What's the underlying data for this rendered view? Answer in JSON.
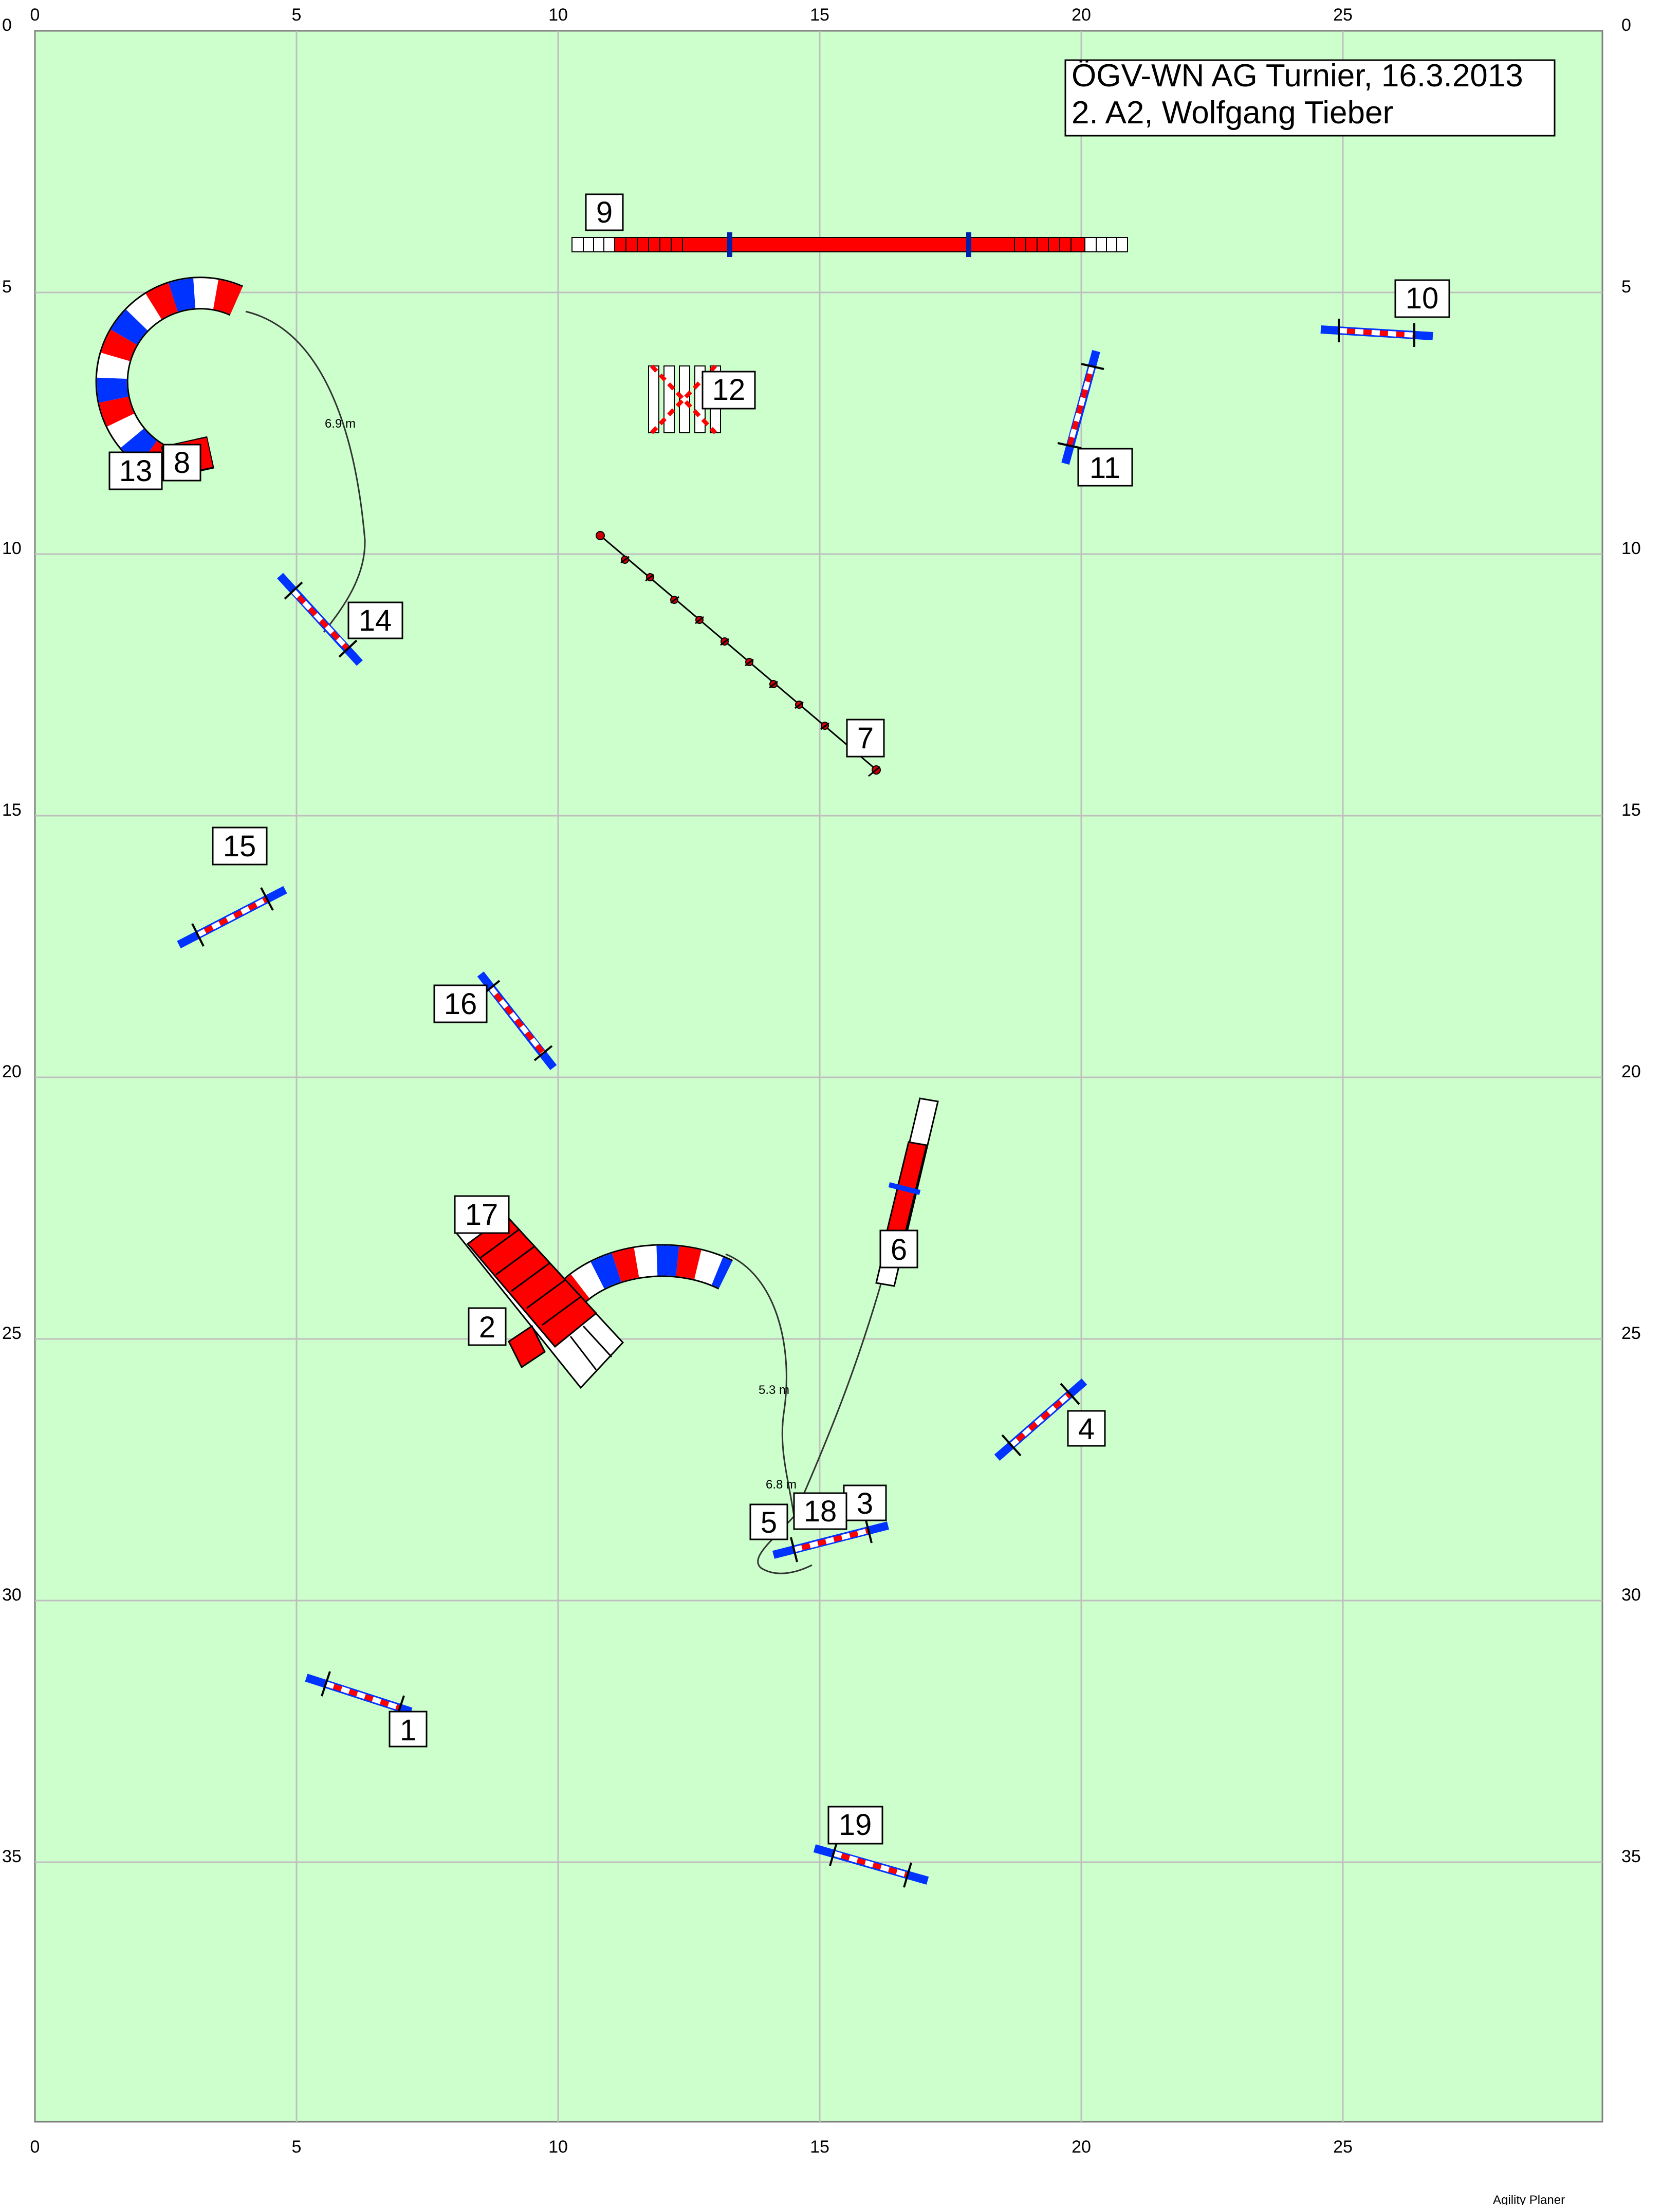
{
  "course_info": {
    "title_line1": "ÖGV-WN AG Turnier, 16.3.2013",
    "title_line2": "2. A2, Wolfgang Tieber"
  },
  "axis": {
    "x_ticks": [
      "0",
      "5",
      "10",
      "15",
      "20",
      "25"
    ],
    "y_ticks": [
      "0",
      "5",
      "10",
      "15",
      "20",
      "25",
      "30",
      "35"
    ]
  },
  "obstacle_numbers": [
    "1",
    "2",
    "3",
    "4",
    "5",
    "6",
    "7",
    "8",
    "9",
    "10",
    "11",
    "12",
    "13",
    "14",
    "15",
    "16",
    "17",
    "18",
    "19"
  ],
  "distances": {
    "d1": "6.9 m",
    "d2": "5.3 m",
    "d3": "6.8 m"
  },
  "footer": {
    "credit": "Agility Planer"
  },
  "colors": {
    "field": "#ccffcc",
    "grid": "#bfbfbf",
    "red": "#ff0000",
    "blue": "#0033ff",
    "white": "#ffffff"
  }
}
